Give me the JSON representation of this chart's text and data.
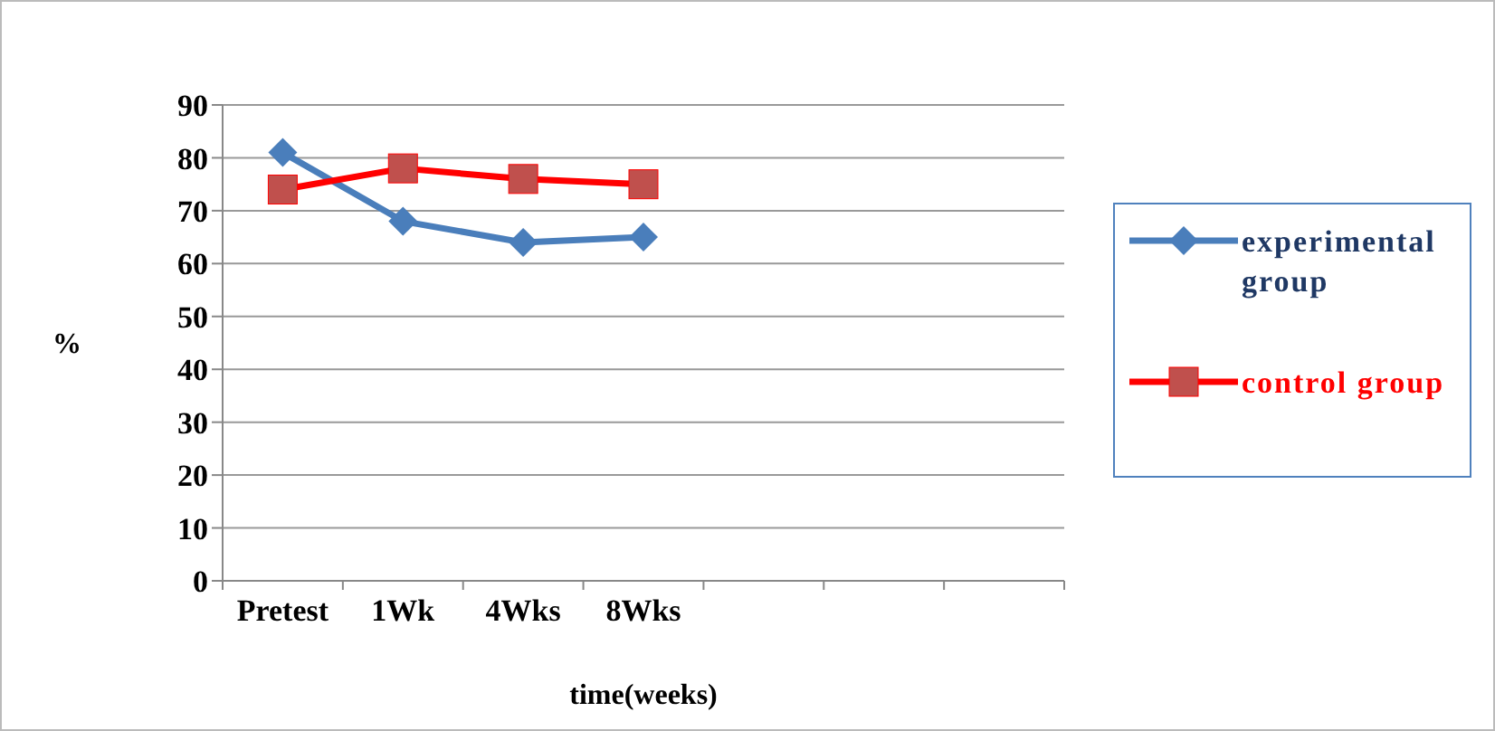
{
  "chart_data": {
    "type": "line",
    "xlabel": "time(weeks)",
    "ylabel": "%",
    "categories": [
      "Pretest",
      "1Wk",
      "4Wks",
      "8Wks",
      null,
      null,
      null
    ],
    "series": [
      {
        "name": "experimental group",
        "color": "#4a7ebb",
        "marker": "diamond",
        "values": [
          81,
          68,
          64,
          65,
          null,
          null,
          null
        ]
      },
      {
        "name": "control group",
        "color": "#ff0000",
        "marker": "square",
        "values": [
          74,
          78,
          76,
          75,
          null,
          null,
          null
        ]
      }
    ],
    "ylim": [
      0,
      90
    ],
    "yticks": [
      0,
      10,
      20,
      30,
      40,
      50,
      60,
      70,
      80,
      90
    ],
    "grid": "y",
    "legend": "right"
  }
}
